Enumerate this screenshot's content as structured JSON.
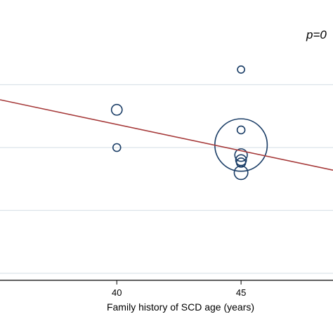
{
  "chart_data": {
    "type": "scatter",
    "title": "",
    "xlabel": "Family history of SCD age (years)",
    "ylabel": "",
    "x_tick_labels": [
      "40",
      "45"
    ],
    "x_ticks": [
      40,
      45
    ],
    "xlim": [
      35.3,
      48.7
    ],
    "y_gridlines": [
      0.75,
      0.5,
      0.25,
      0
    ],
    "ylim": [
      0,
      1
    ],
    "grid": true,
    "annotation": "p=0",
    "colors": {
      "markers": "#1a3d66",
      "fit_line": "#a63a3a",
      "grid": "#dce3ea",
      "axis": "#000000"
    },
    "points": [
      {
        "x": 40,
        "y": 0.65,
        "weight": 1.9
      },
      {
        "x": 40,
        "y": 0.5,
        "weight": 1.0
      },
      {
        "x": 45,
        "y": 0.81,
        "weight": 0.85
      },
      {
        "x": 45,
        "y": 0.57,
        "weight": 1.0
      },
      {
        "x": 45,
        "y": 0.51,
        "weight": 46
      },
      {
        "x": 45,
        "y": 0.47,
        "weight": 2.6
      },
      {
        "x": 45,
        "y": 0.45,
        "weight": 1.9
      },
      {
        "x": 45,
        "y": 0.44,
        "weight": 1.4
      },
      {
        "x": 45,
        "y": 0.4,
        "weight": 3.1
      }
    ],
    "fit_line": {
      "x": [
        35.3,
        48.7
      ],
      "y": [
        0.69,
        0.41
      ]
    }
  }
}
